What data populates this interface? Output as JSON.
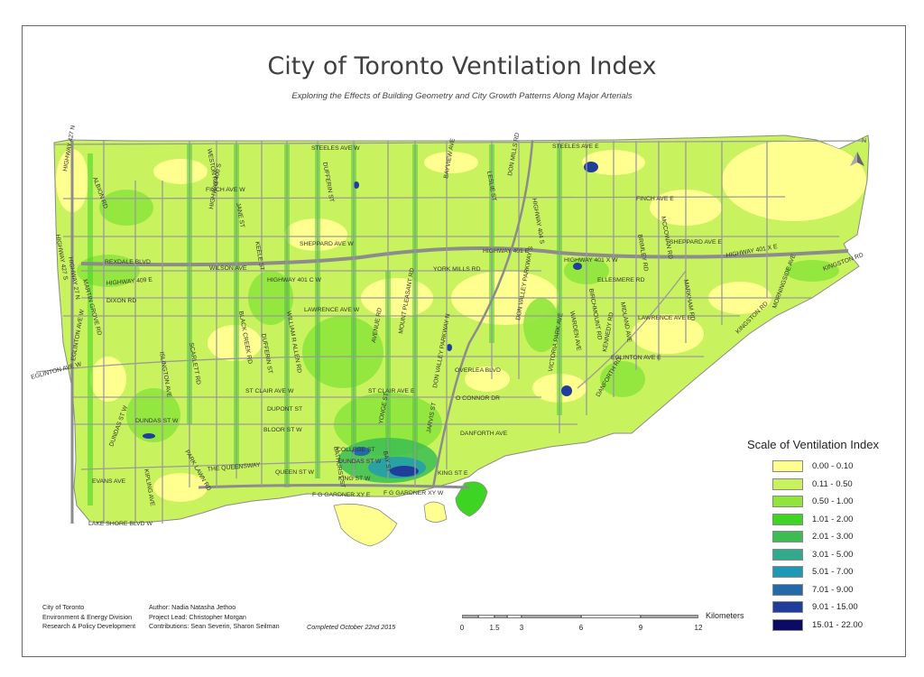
{
  "title": "City of Toronto Ventilation Index",
  "subtitle": "Exploring the Effects of Building Geometry and City Growth Patterns Along Major Arterials",
  "north_arrow_label": "N",
  "legend": {
    "title": "Scale of Ventilation Index",
    "items": [
      {
        "label": "0.00 - 0.10",
        "color": "#ffff8f"
      },
      {
        "label": "0.11 - 0.50",
        "color": "#c7f25c"
      },
      {
        "label": "0.50 - 1.00",
        "color": "#8ee63c"
      },
      {
        "label": "1.01 - 2.00",
        "color": "#3ed423"
      },
      {
        "label": "2.01 - 3.00",
        "color": "#3bbd52"
      },
      {
        "label": "3.01 - 5.00",
        "color": "#31a98a"
      },
      {
        "label": "5.01 - 7.00",
        "color": "#1f98b5"
      },
      {
        "label": "7.01 - 9.00",
        "color": "#2569a8"
      },
      {
        "label": "9.01 - 15.00",
        "color": "#203d9c"
      },
      {
        "label": "15.01 - 22.00",
        "color": "#0b0b66"
      }
    ]
  },
  "scale_bar": {
    "unit": "Kilometers",
    "ticks": [
      "0",
      "1.5",
      "3",
      "6",
      "9",
      "12"
    ]
  },
  "footer": {
    "org": [
      "City of Toronto",
      "Environment & Energy Division",
      "Research & Policy Development"
    ],
    "credits": [
      "Author: Nadia Natasha Jethoo",
      "Project Lead: Christopher Morgan",
      "Contributions: Sean Severin, Sharon Seilman"
    ],
    "completed": "Completed October 22nd 2015"
  },
  "road_labels": [
    "STEELES AVE W",
    "STEELES AVE E",
    "FINCH AVE W",
    "FINCH AVE E",
    "SHEPPARD AVE W",
    "SHEPPARD AVE E",
    "HIGHWAY 401 C W",
    "HIGHWAY 401 E",
    "HIGHWAY 401 X W",
    "HIGHWAY 401 X E",
    "WILSON AVE",
    "REXDALE BLVD",
    "HIGHWAY 409 E",
    "DIXON RD",
    "YORK MILLS RD",
    "ELLESMERE RD",
    "LAWRENCE AVE W",
    "LAWRENCE AVE E",
    "EGLINTON AVE W",
    "EGLINTON AVE E",
    "ST CLAIR AVE W",
    "ST CLAIR AVE E",
    "DUPONT ST",
    "BLOOR ST W",
    "DUNDAS ST W",
    "COLLEGE ST",
    "DUNDAS ST W",
    "QUEEN ST W",
    "KING ST W",
    "F G GARDNER XY E",
    "F G GARDNER XY W",
    "THE QUEENSWAY",
    "LAKE SHORE BLVD W",
    "EVANS AVE",
    "DANFORTH AVE",
    "O CONNOR DR",
    "OVERLEA BLVD",
    "KINGSTON RD",
    "HIGHWAY 427 N",
    "HIGHWAY 427 S",
    "ALBION RD",
    "HIGHWAY 27 N",
    "MARTIN GROVE RD",
    "KIPLING AVE",
    "ISLINGTON AVE",
    "SCARLETT RD",
    "PARK LAWN RD",
    "WESTON RD",
    "HIGHWAY 400 S",
    "JANE ST",
    "KEELE ST",
    "BLACK CREEK RD",
    "DUFFERIN ST",
    "DUFFERIN ST",
    "WILLIAM R ALLEN RD",
    "AVENUE RD",
    "MOUNT PLEASANT RD",
    "YONGE ST",
    "BAYVIEW AVE",
    "LESLIE ST",
    "DON MILLS RD",
    "DON VALLEY PARKWAY S",
    "DON VALLEY PARKWAY N",
    "HIGHWAY 404 S",
    "VICTORIA PARK AVE",
    "WARDEN AVE",
    "BIRCHMOUNT RD",
    "KENNEDY RD",
    "MIDLAND AVE",
    "BRIMLEY RD",
    "MCCOWAN RD",
    "MARKHAM RD",
    "MORNINGSIDE AVE",
    "KINGSTON RD",
    "DANFORTH RD",
    "BATHURST ST",
    "BAY ST",
    "JARVIS ST",
    "KING ST E",
    "DUNDAS ST W",
    "EGLINTON AVE W"
  ]
}
